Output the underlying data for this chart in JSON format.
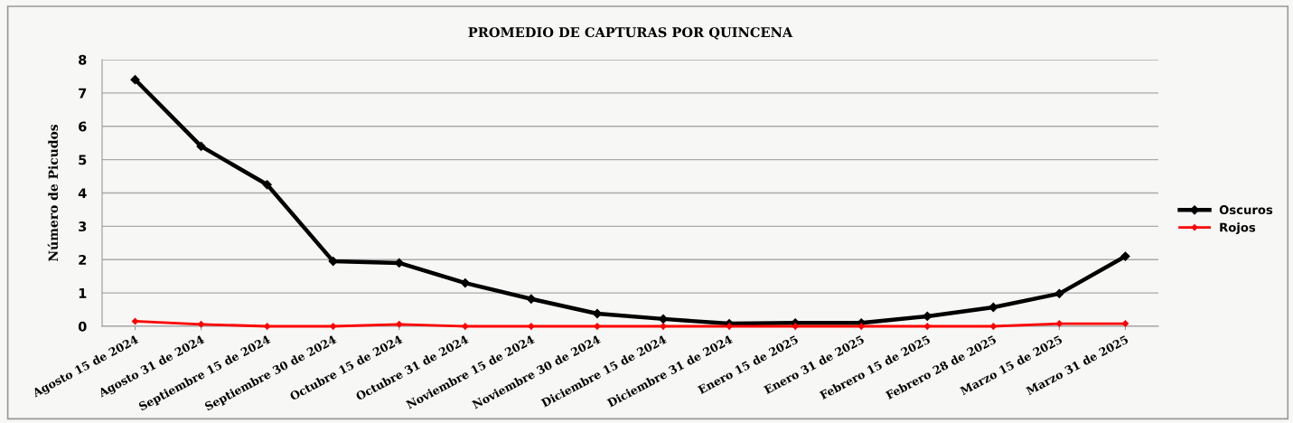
{
  "chart_data": {
    "type": "line",
    "title": "PROMEDIO DE CAPTURAS POR QUINCENA",
    "ylabel": "Número de Picudos",
    "categories": [
      "Agosto 15 de 2024",
      "Agosto 31 de 2024",
      "Septiembre 15 de 2024",
      "Septiembre 30 de 2024",
      "Octubre 15 de 2024",
      "Octubre 31 de 2024",
      "Noviembre 15 de 2024",
      "Noviembre 30 de 2024",
      "Diciembre 15 de 2024",
      "Diciembre 31 de 2024",
      "Enero 15 de 2025",
      "Enero 31 de 2025",
      "Febrero 15 de 2025",
      "Febrero 28 de 2025",
      "Marzo 15 de 2025",
      "Marzo 31 de 2025"
    ],
    "series": [
      {
        "name": "Oscuros",
        "color": "#000000",
        "values": [
          7.4,
          5.4,
          4.25,
          1.95,
          1.9,
          1.3,
          0.82,
          0.38,
          0.22,
          0.08,
          0.1,
          0.1,
          0.3,
          0.57,
          0.98,
          2.1
        ]
      },
      {
        "name": "Rojos",
        "color": "#ff0000",
        "values": [
          0.15,
          0.06,
          0,
          0,
          0.06,
          0,
          0,
          0,
          0,
          0,
          0,
          0,
          0,
          0,
          0.08,
          0.08
        ]
      }
    ],
    "ylim": [
      0,
      8
    ],
    "yticks": [
      0,
      1,
      2,
      3,
      4,
      5,
      6,
      7,
      8
    ],
    "grid": "y",
    "legend": "right",
    "marker": "diamond",
    "line_style": "solid"
  }
}
